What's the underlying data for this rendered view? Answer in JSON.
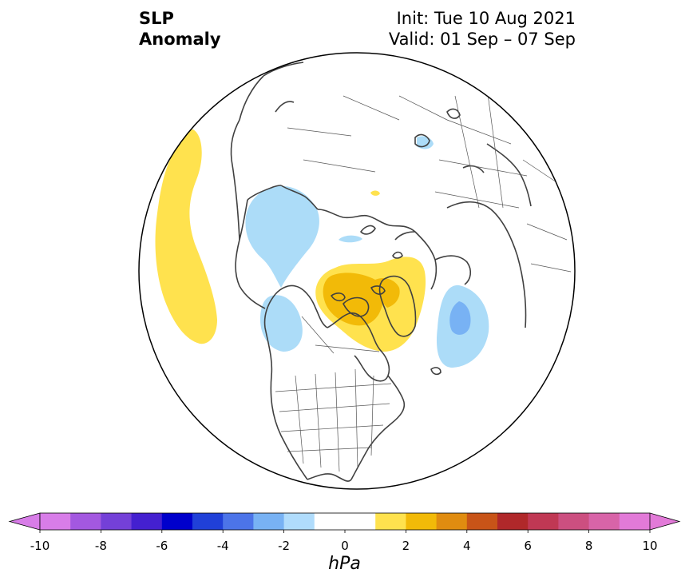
{
  "title": {
    "left_line1": "SLP",
    "left_line2": "Anomaly",
    "right_line1": "Init: Tue 10 Aug 2021",
    "right_line2": "Valid: 01 Sep – 07 Sep"
  },
  "colorbar": {
    "unit": "hPa",
    "ticks": [
      "-10",
      "-8",
      "-6",
      "-4",
      "-2",
      "0",
      "2",
      "4",
      "6",
      "8",
      "10"
    ],
    "tick_values": [
      -10,
      -8,
      -6,
      -4,
      -2,
      0,
      2,
      4,
      6,
      8,
      10
    ],
    "colors": [
      "#d87de8",
      "#a358e0",
      "#7440d8",
      "#4420d0",
      "#0000cc",
      "#2040d8",
      "#4c74e8",
      "#78b2f4",
      "#b0dcfc",
      "#ffffff",
      "#ffffff",
      "#ffe24e",
      "#f2ba08",
      "#e08c10",
      "#c85418",
      "#b0282a",
      "#c03854",
      "#cc4f80",
      "#d864a8",
      "#e27ad8"
    ],
    "under_color": "#d87de8",
    "over_color": "#e27ad8"
  },
  "map": {
    "projection": "north-polar-stereographic",
    "colors": {
      "light_blue": "#acdcf8",
      "mid_blue": "#78b2f4",
      "light_yellow": "#ffe24e",
      "mid_yellow": "#f2ba08"
    },
    "anomalies": [
      {
        "region": "North Pacific",
        "sign": "positive",
        "level": "1 to 2 hPa"
      },
      {
        "region": "Greenland / Canadian Archipelago",
        "sign": "positive",
        "level": "2 to 3 hPa"
      },
      {
        "region": "North Atlantic",
        "sign": "negative",
        "level": "-2 to -3 hPa"
      },
      {
        "region": "Barents / Kara Sea",
        "sign": "negative",
        "level": "-1 to -2 hPa"
      },
      {
        "region": "Bering Sea / Alaska",
        "sign": "negative",
        "level": "-1 to -2 hPa"
      }
    ]
  }
}
